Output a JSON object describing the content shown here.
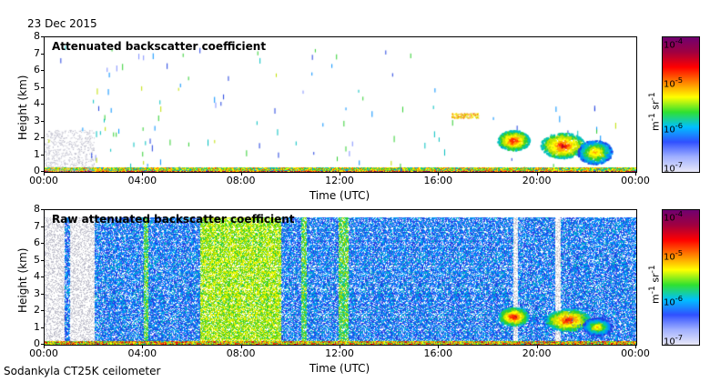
{
  "date": "23 Dec 2015",
  "instrument": "Sodankyla CT25K ceilometer",
  "chart_data": [
    {
      "type": "heatmap",
      "title": "Attenuated backscatter coefficient",
      "xlabel": "Time (UTC)",
      "ylabel": "Height (km)",
      "x_ticks": [
        "00:00",
        "04:00",
        "08:00",
        "12:00",
        "16:00",
        "20:00",
        "00:00"
      ],
      "y_ticks": [
        "0",
        "1",
        "2",
        "3",
        "4",
        "5",
        "6",
        "7",
        "8"
      ],
      "ylim": [
        0,
        8
      ],
      "xlim_hours": [
        0,
        24
      ],
      "colorbar": {
        "min": "10-7",
        "max": "10-4",
        "ticks": [
          "10-7",
          "10-6",
          "10-5",
          "10-4"
        ],
        "unit": "m-1 sr-1",
        "scale": "log"
      },
      "features": [
        {
          "name": "cloud",
          "start_h": 16.5,
          "end_h": 17.6,
          "height_km": 3.2
        },
        {
          "name": "cloud",
          "start_h": 18.5,
          "end_h": 19.5,
          "height_km": 1.8
        },
        {
          "name": "cloud",
          "start_h": 20.5,
          "end_h": 22.8,
          "height_km": 1.5
        }
      ]
    },
    {
      "type": "heatmap",
      "title": "Raw attenuated backscatter coefficient",
      "xlabel": "Time (UTC)",
      "ylabel": "Height (km)",
      "x_ticks": [
        "00:00",
        "04:00",
        "08:00",
        "12:00",
        "16:00",
        "20:00",
        "00:00"
      ],
      "y_ticks": [
        "0",
        "1",
        "2",
        "3",
        "4",
        "5",
        "6",
        "7",
        "8"
      ],
      "ylim": [
        0,
        8
      ],
      "xlim_hours": [
        0,
        24
      ],
      "colorbar": {
        "min": "10-7",
        "max": "10-4",
        "ticks": [
          "10-7",
          "10-6",
          "10-5",
          "10-4"
        ],
        "unit": "m-1 sr-1",
        "scale": "log"
      }
    }
  ]
}
